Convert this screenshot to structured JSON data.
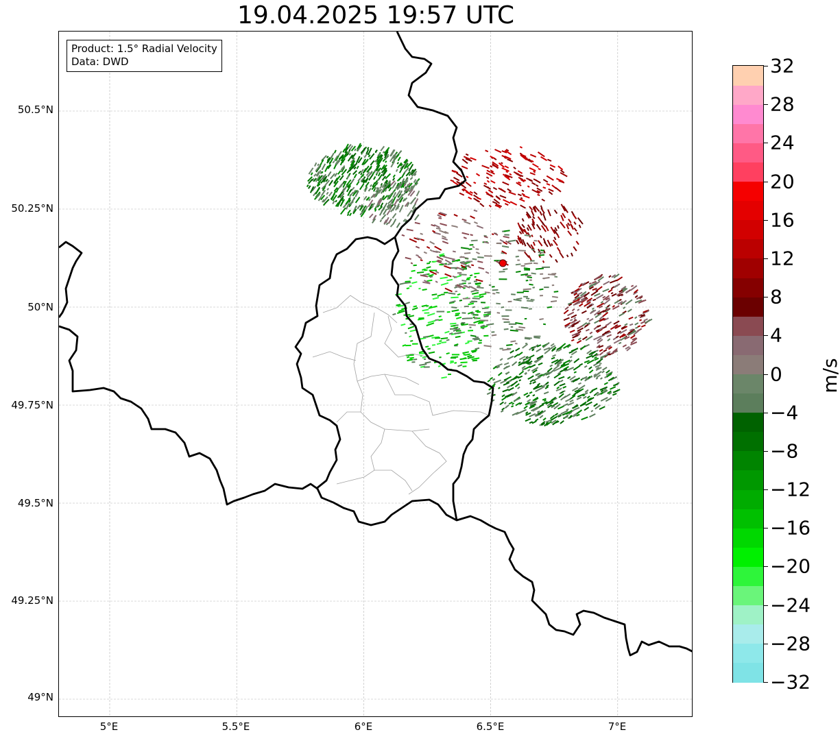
{
  "title": "19.04.2025 19:57 UTC",
  "info": {
    "product": "Product: 1.5° Radial Velocity",
    "source": "Data: DWD"
  },
  "lat_labels": [
    "50.5°N",
    "50.25°N",
    "50°N",
    "49.75°N",
    "49.5°N",
    "49.25°N",
    "49°N"
  ],
  "lon_labels": [
    "5°E",
    "5.5°E",
    "6°E",
    "6.5°E",
    "7°E"
  ],
  "colorbar": {
    "unit": "m/s",
    "ticks": [
      "32",
      "28",
      "24",
      "20",
      "16",
      "12",
      "8",
      "4",
      "0",
      "−4",
      "−8",
      "−12",
      "−16",
      "−20",
      "−24",
      "−28",
      "−32"
    ],
    "colors": [
      "#7fe3e6",
      "#8ee8ea",
      "#a9eceb",
      "#9ff2c6",
      "#6af57a",
      "#2ef53a",
      "#00f000",
      "#00d800",
      "#00c000",
      "#00ac00",
      "#009800",
      "#008400",
      "#007000",
      "#006200",
      "#5c7e5c",
      "#6b8669",
      "#8b7c78",
      "#896a72",
      "#8a4a52",
      "#6b0000",
      "#850000",
      "#a00000",
      "#bb0000",
      "#d20000",
      "#e40000",
      "#f50000",
      "#ff4060",
      "#ff5a85",
      "#ff75a8",
      "#ff8ad0",
      "#ffa8c8",
      "#ffd0b0"
    ]
  },
  "radar_site": {
    "lon": 6.548,
    "lat": 50.112,
    "color": "#ee0000"
  },
  "colors": {
    "border": "#000000",
    "admin": "#a0a0a0",
    "grid": "#b4b4b4"
  }
}
